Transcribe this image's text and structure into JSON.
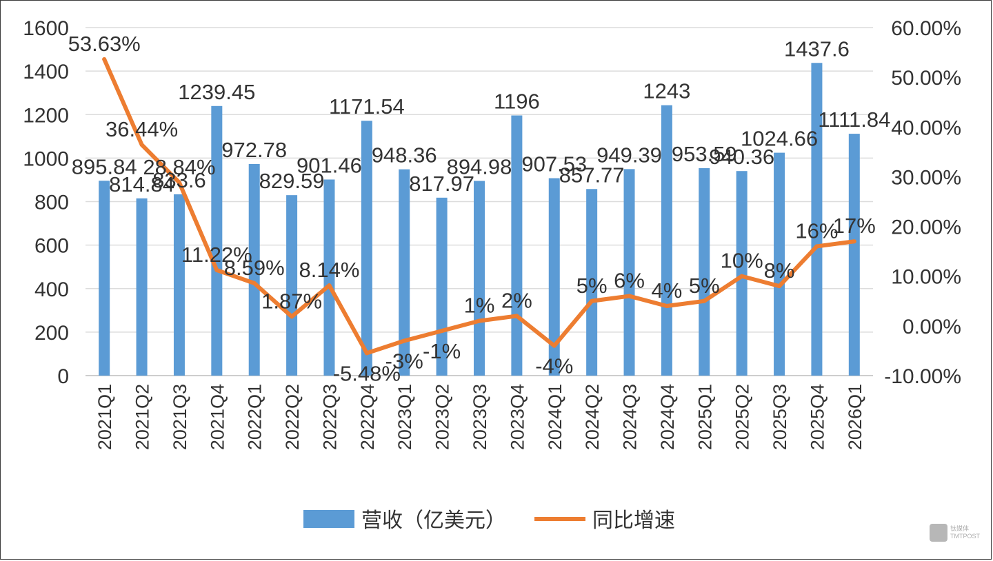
{
  "chart_data": {
    "type": "bar+line",
    "categories": [
      "2021Q1",
      "2021Q2",
      "2021Q3",
      "2021Q4",
      "2022Q1",
      "2022Q2",
      "2022Q3",
      "2022Q4",
      "2023Q1",
      "2023Q2",
      "2023Q3",
      "2023Q4",
      "2024Q1",
      "2024Q2",
      "2024Q3",
      "2024Q4",
      "2025Q1",
      "2025Q2",
      "2025Q3",
      "2025Q4",
      "2026Q1"
    ],
    "series": [
      {
        "name": "营收（亿美元）",
        "type": "bar",
        "axis": "left",
        "color": "#5b9bd5",
        "values": [
          895.84,
          814.84,
          833.6,
          1239.45,
          972.78,
          829.59,
          901.46,
          1171.54,
          948.36,
          817.97,
          894.98,
          1196,
          907.53,
          857.77,
          949.39,
          1243,
          953.59,
          940.36,
          1024.66,
          1437.6,
          1111.84
        ],
        "labels": [
          "895.84",
          "814.84",
          "833.6",
          "1239.45",
          "972.78",
          "829.59",
          "901.46",
          "1171.54",
          "948.36",
          "817.97",
          "894.98",
          "1196",
          "907.53",
          "857.77",
          "949.39",
          "1243",
          "953.59",
          "940.36",
          "1024.66",
          "1437.6",
          "1111.84"
        ]
      },
      {
        "name": "同比增速",
        "type": "line",
        "axis": "right",
        "color": "#ed7d31",
        "values": [
          53.63,
          36.44,
          28.84,
          11.22,
          8.59,
          1.87,
          8.14,
          -5.48,
          -3,
          -1,
          1,
          2,
          -4,
          5,
          6,
          4,
          5,
          10,
          8,
          16,
          17
        ],
        "labels": [
          "53.63%",
          "36.44%",
          "28.84%",
          "11.22%",
          "8.59%",
          "1.87%",
          "8.14%",
          "-5.48%",
          "-3%",
          "-1%",
          "1%",
          "2%",
          "-4%",
          "5%",
          "6%",
          "4%",
          "5%",
          "10%",
          "8%",
          "16%",
          "17%"
        ]
      }
    ],
    "ylim_left": [
      0,
      1600
    ],
    "yticks_left": [
      "0",
      "200",
      "400",
      "600",
      "800",
      "1000",
      "1200",
      "1400",
      "1600"
    ],
    "ylim_right": [
      -10,
      60
    ],
    "yticks_right": [
      "-10.00%",
      "0.00%",
      "10.00%",
      "20.00%",
      "30.00%",
      "40.00%",
      "50.00%",
      "60.00%"
    ],
    "grid": true,
    "legend": "bottom"
  },
  "watermark": {
    "text": "钛媒体",
    "sub": "TMTPOST"
  }
}
